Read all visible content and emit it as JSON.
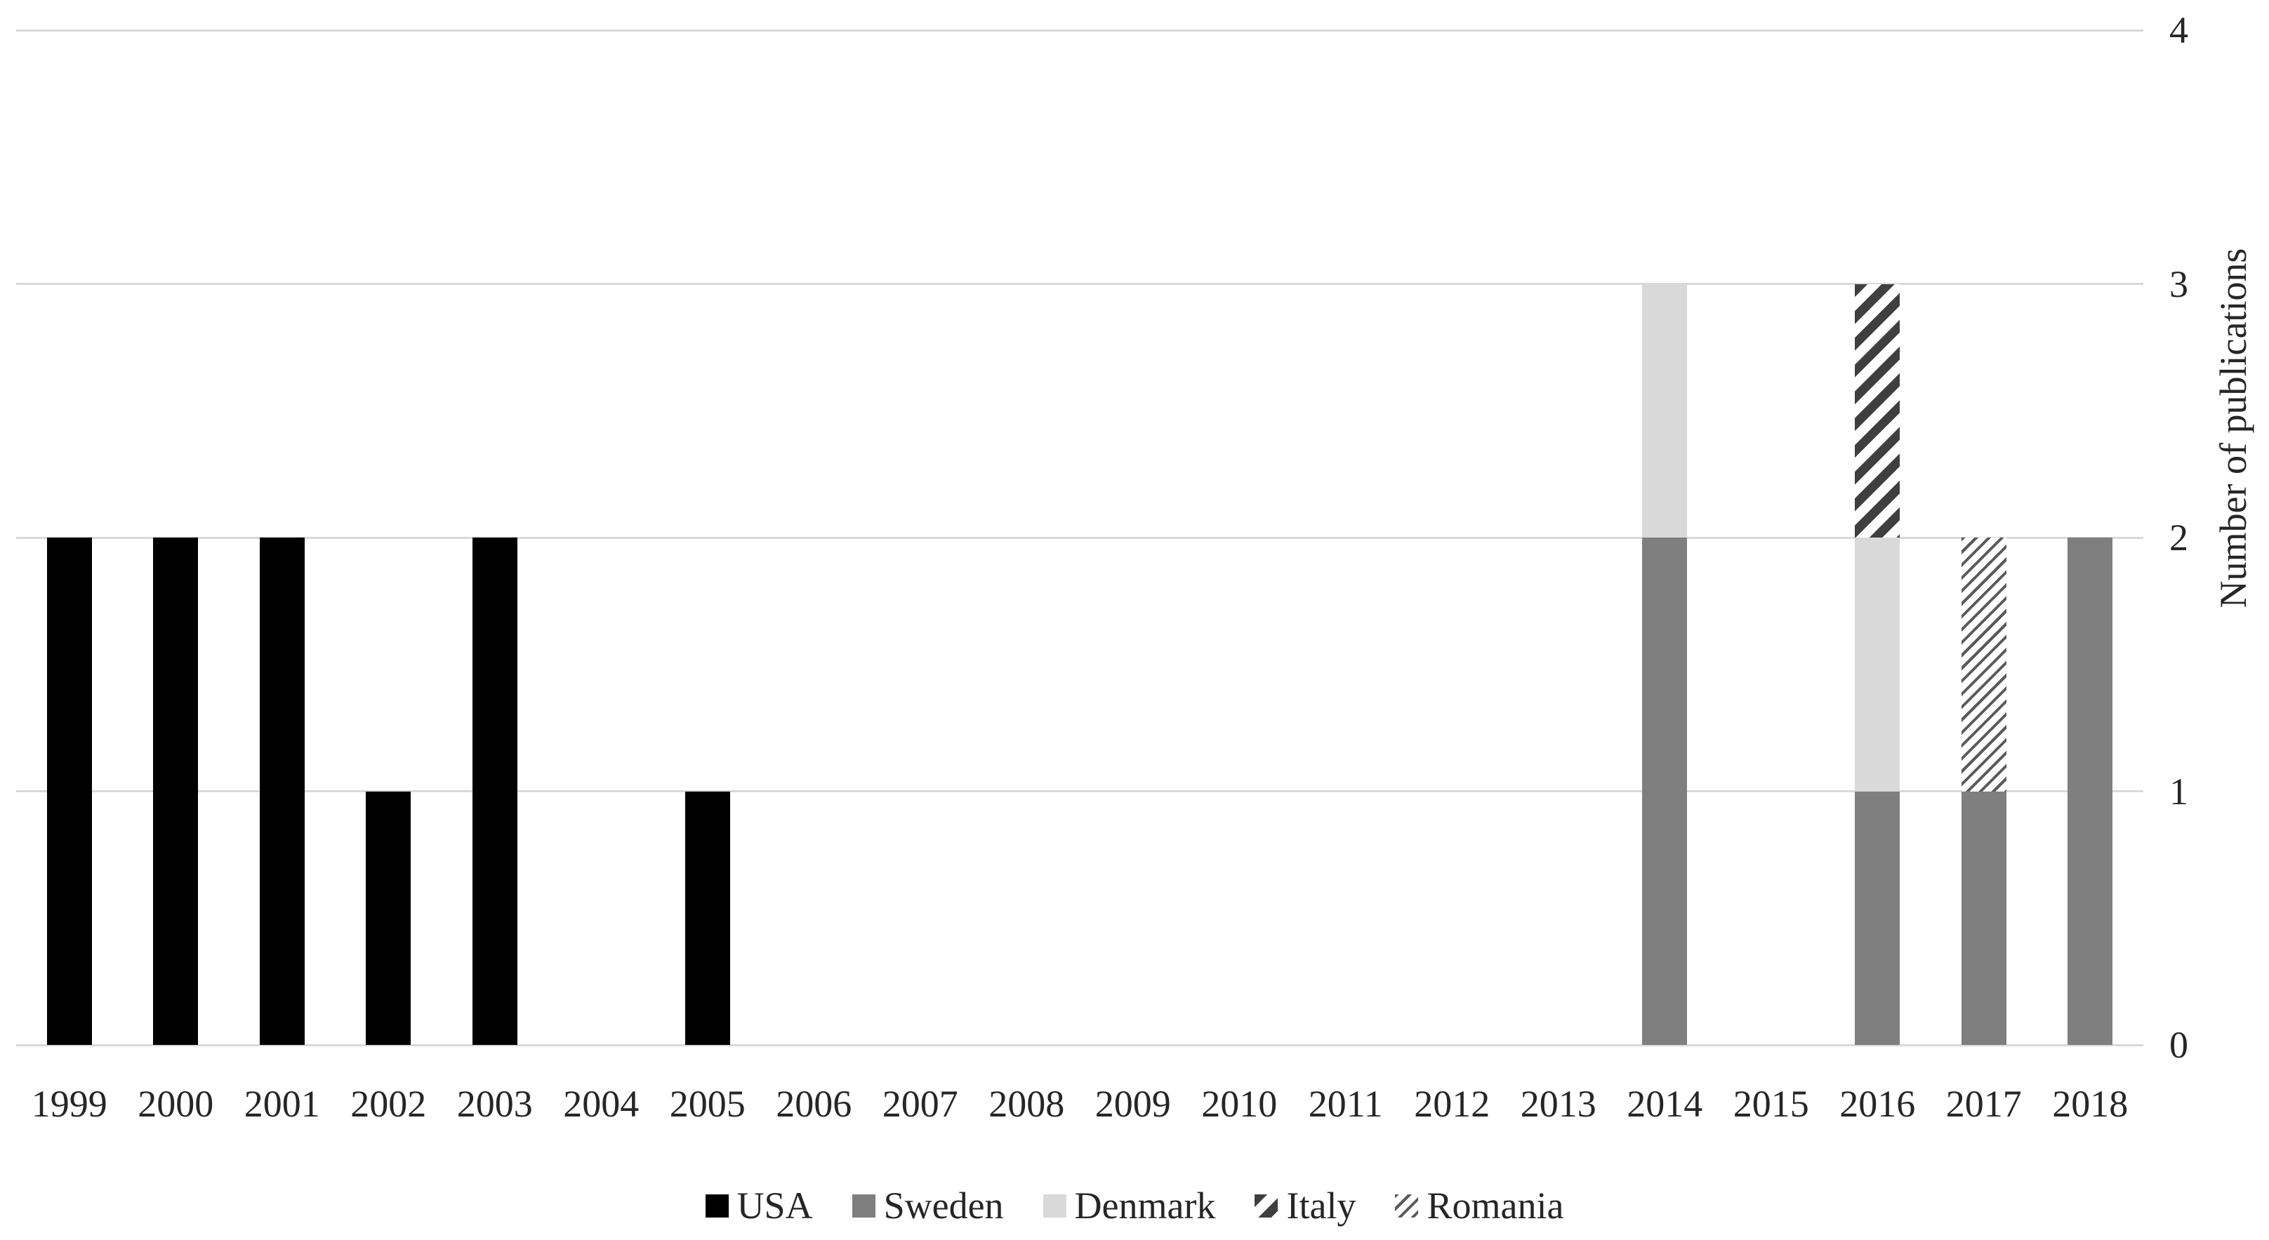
{
  "chart_data": {
    "type": "bar",
    "stacked": true,
    "categories": [
      "1999",
      "2000",
      "2001",
      "2002",
      "2003",
      "2004",
      "2005",
      "2006",
      "2007",
      "2008",
      "2009",
      "2010",
      "2011",
      "2012",
      "2013",
      "2014",
      "2015",
      "2016",
      "2017",
      "2018"
    ],
    "series": [
      {
        "name": "USA",
        "color": "#000000",
        "pattern": "solid",
        "values": [
          2,
          2,
          2,
          1,
          2,
          0,
          1,
          0,
          0,
          0,
          0,
          0,
          0,
          0,
          0,
          0,
          0,
          0,
          0,
          0
        ]
      },
      {
        "name": "Sweden",
        "color": "#7F7F7F",
        "pattern": "solid",
        "values": [
          0,
          0,
          0,
          0,
          0,
          0,
          0,
          0,
          0,
          0,
          0,
          0,
          0,
          0,
          0,
          2,
          0,
          1,
          1,
          2
        ]
      },
      {
        "name": "Denmark",
        "color": "#D9D9D9",
        "pattern": "solid",
        "values": [
          0,
          0,
          0,
          0,
          0,
          0,
          0,
          0,
          0,
          0,
          0,
          0,
          0,
          0,
          0,
          1,
          0,
          1,
          0,
          0
        ]
      },
      {
        "name": "Italy",
        "color": "#3F3F3F",
        "pattern": "wide-upward-diagonal",
        "values": [
          0,
          0,
          0,
          0,
          0,
          0,
          0,
          0,
          0,
          0,
          0,
          0,
          0,
          0,
          0,
          0,
          0,
          1,
          0,
          0
        ]
      },
      {
        "name": "Romania",
        "color": "#5A5A5A",
        "pattern": "light-upward-diagonal",
        "values": [
          0,
          0,
          0,
          0,
          0,
          0,
          0,
          0,
          0,
          0,
          0,
          0,
          0,
          0,
          0,
          0,
          0,
          0,
          1,
          0
        ]
      }
    ],
    "title": "",
    "xlabel": "",
    "ylabel": "Number of publications",
    "y_ticks": [
      "0",
      "1",
      "2",
      "3",
      "4"
    ],
    "ylim": [
      0,
      4
    ],
    "grid": true,
    "gridline_color": "#D9D9D9",
    "value_axis_side": "right",
    "legend_position": "bottom",
    "text_color": "#262626",
    "background_color": "#FFFFFF"
  }
}
